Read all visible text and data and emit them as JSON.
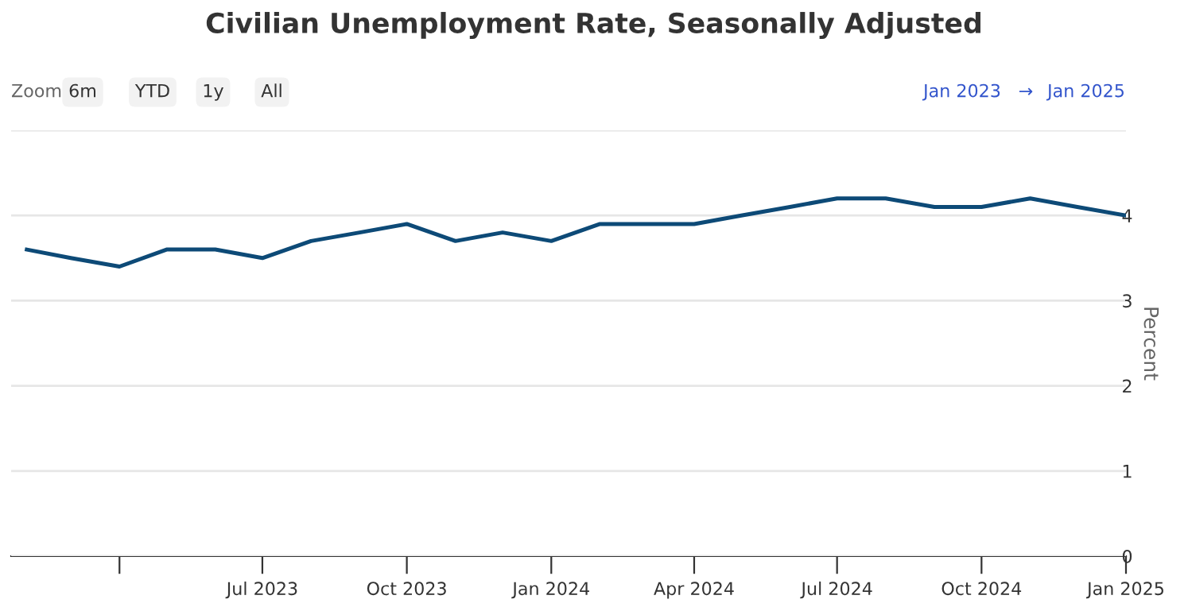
{
  "chart_data": {
    "type": "line",
    "title": "Civilian Unemployment Rate, Seasonally Adjusted",
    "y2label": "Percent",
    "x": [
      "2023-02",
      "2023-03",
      "2023-04",
      "2023-05",
      "2023-06",
      "2023-07",
      "2023-08",
      "2023-09",
      "2023-10",
      "2023-11",
      "2023-12",
      "2024-01",
      "2024-02",
      "2024-03",
      "2024-04",
      "2024-05",
      "2024-06",
      "2024-07",
      "2024-08",
      "2024-09",
      "2024-10",
      "2024-11",
      "2024-12",
      "2025-01"
    ],
    "series": [
      {
        "color": "#0d4a77",
        "axis": "y2",
        "values": [
          3.6,
          3.5,
          3.4,
          3.6,
          3.6,
          3.5,
          3.7,
          3.8,
          3.9,
          3.7,
          3.8,
          3.7,
          3.9,
          3.9,
          3.9,
          4.0,
          4.1,
          4.2,
          4.2,
          4.1,
          4.1,
          4.2,
          4.1,
          4.0
        ]
      }
    ],
    "xlim": [
      "2023-01-22",
      "2025-01-01"
    ],
    "xticks": [
      {
        "value": "2023-04-01",
        "label": null
      },
      {
        "value": "2023-07-01",
        "label": "Jul 2023"
      },
      {
        "value": "2023-10-01",
        "label": "Oct 2023"
      },
      {
        "value": "2024-01-01",
        "label": "Jan 2024"
      },
      {
        "value": "2024-04-01",
        "label": "Apr 2024"
      },
      {
        "value": "2024-07-01",
        "label": "Jul 2024"
      },
      {
        "value": "2024-10-01",
        "label": "Oct 2024"
      },
      {
        "value": "2025-01-01",
        "label": "Jan 2025"
      }
    ],
    "y2lim": [
      0,
      5
    ],
    "y2ticks": [
      0,
      1,
      2,
      3,
      4,
      {
        "value": 5,
        "label": null
      }
    ],
    "grid": "y",
    "marker": "none",
    "line_style": "solid",
    "annotations": [
      "Zoom",
      "6m",
      "YTD",
      "1y",
      "All",
      "Jan 2023",
      "→",
      "Jan 2025"
    ]
  }
}
